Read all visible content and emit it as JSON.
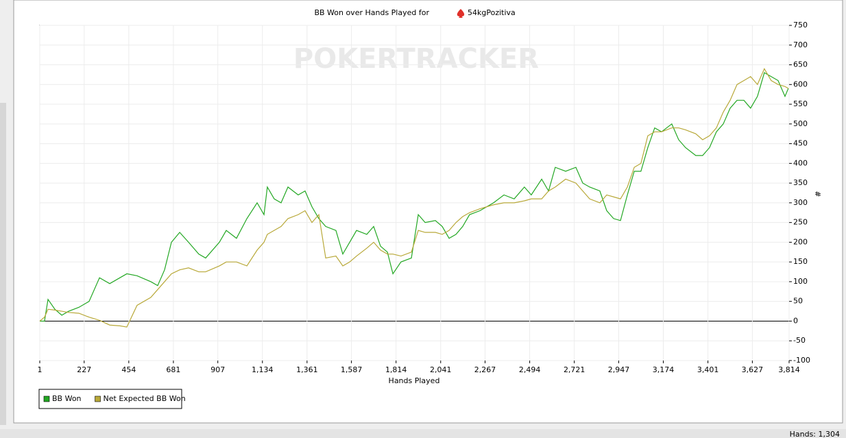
{
  "chart_data": {
    "type": "line",
    "title": "BB Won over Hands Played for",
    "player": "54kgPozitiva",
    "watermark": "POKERTRACKER",
    "x_label": "Hands Played",
    "y_label": "#",
    "status": "Hands: 1,304",
    "grid": true,
    "legend": "bottom-left",
    "xlim": [
      1,
      3814
    ],
    "ylim": [
      -100,
      750
    ],
    "xticks": [
      1,
      227,
      454,
      681,
      907,
      {
        "value": 1134,
        "label": "1,134"
      },
      {
        "value": 1361,
        "label": "1,361"
      },
      {
        "value": 1587,
        "label": "1,587"
      },
      {
        "value": 1814,
        "label": "1,814"
      },
      {
        "value": 2041,
        "label": "2,041"
      },
      {
        "value": 2267,
        "label": "2,267"
      },
      {
        "value": 2494,
        "label": "2,494"
      },
      {
        "value": 2721,
        "label": "2,721"
      },
      {
        "value": 2947,
        "label": "2,947"
      },
      {
        "value": 3174,
        "label": "3,174"
      },
      {
        "value": 3401,
        "label": "3,401"
      },
      {
        "value": 3627,
        "label": "3,627"
      },
      {
        "value": 3814,
        "label": "3,814"
      }
    ],
    "yticks": [
      -100,
      -50,
      0,
      50,
      100,
      150,
      200,
      250,
      300,
      350,
      400,
      450,
      500,
      550,
      600,
      650,
      700,
      750
    ],
    "x": [
      1,
      25,
      43,
      78,
      113,
      148,
      200,
      252,
      305,
      357,
      409,
      444,
      496,
      566,
      601,
      636,
      671,
      713,
      758,
      810,
      845,
      915,
      950,
      1002,
      1055,
      1107,
      1142,
      1159,
      1194,
      1229,
      1264,
      1316,
      1351,
      1386,
      1421,
      1456,
      1508,
      1543,
      1578,
      1613,
      1665,
      1700,
      1735,
      1770,
      1798,
      1839,
      1892,
      1927,
      1962,
      2014,
      2049,
      2084,
      2119,
      2153,
      2188,
      2241,
      2310,
      2363,
      2415,
      2467,
      2502,
      2555,
      2590,
      2624,
      2677,
      2729,
      2764,
      2799,
      2851,
      2886,
      2921,
      2956,
      2991,
      3026,
      3060,
      3095,
      3130,
      3165,
      3217,
      3252,
      3287,
      3339,
      3374,
      3409,
      3444,
      3479,
      3514,
      3549,
      3584,
      3618,
      3653,
      3688,
      3723,
      3758,
      3793,
      3810
    ],
    "series": [
      {
        "name": "BB Won",
        "color": "#22a722",
        "values": [
          0,
          0,
          55,
          30,
          15,
          25,
          35,
          50,
          110,
          95,
          110,
          120,
          115,
          100,
          90,
          130,
          200,
          225,
          200,
          170,
          160,
          200,
          230,
          210,
          260,
          300,
          270,
          340,
          310,
          300,
          340,
          320,
          330,
          290,
          260,
          240,
          230,
          170,
          200,
          230,
          220,
          240,
          190,
          175,
          120,
          150,
          160,
          270,
          250,
          255,
          240,
          210,
          220,
          240,
          270,
          280,
          300,
          320,
          310,
          340,
          320,
          360,
          330,
          390,
          380,
          390,
          350,
          340,
          330,
          280,
          260,
          255,
          320,
          380,
          380,
          440,
          490,
          480,
          500,
          460,
          440,
          420,
          420,
          440,
          480,
          500,
          540,
          560,
          560,
          540,
          570,
          630,
          620,
          610,
          570,
          590
        ]
      },
      {
        "name": "Net Expected BB Won",
        "color": "#b8a838",
        "values": [
          0,
          10,
          30,
          28,
          25,
          22,
          20,
          10,
          2,
          -10,
          -12,
          -15,
          40,
          60,
          80,
          100,
          120,
          130,
          135,
          125,
          125,
          140,
          150,
          150,
          140,
          180,
          200,
          220,
          230,
          240,
          260,
          270,
          280,
          250,
          270,
          160,
          165,
          140,
          150,
          165,
          185,
          200,
          180,
          170,
          170,
          165,
          175,
          230,
          225,
          225,
          220,
          230,
          250,
          265,
          275,
          285,
          295,
          300,
          300,
          305,
          310,
          310,
          330,
          340,
          360,
          350,
          330,
          310,
          300,
          320,
          315,
          310,
          340,
          390,
          400,
          470,
          480,
          480,
          490,
          490,
          485,
          475,
          460,
          470,
          490,
          530,
          560,
          600,
          610,
          620,
          600,
          640,
          610,
          600,
          595,
          590
        ]
      }
    ]
  }
}
